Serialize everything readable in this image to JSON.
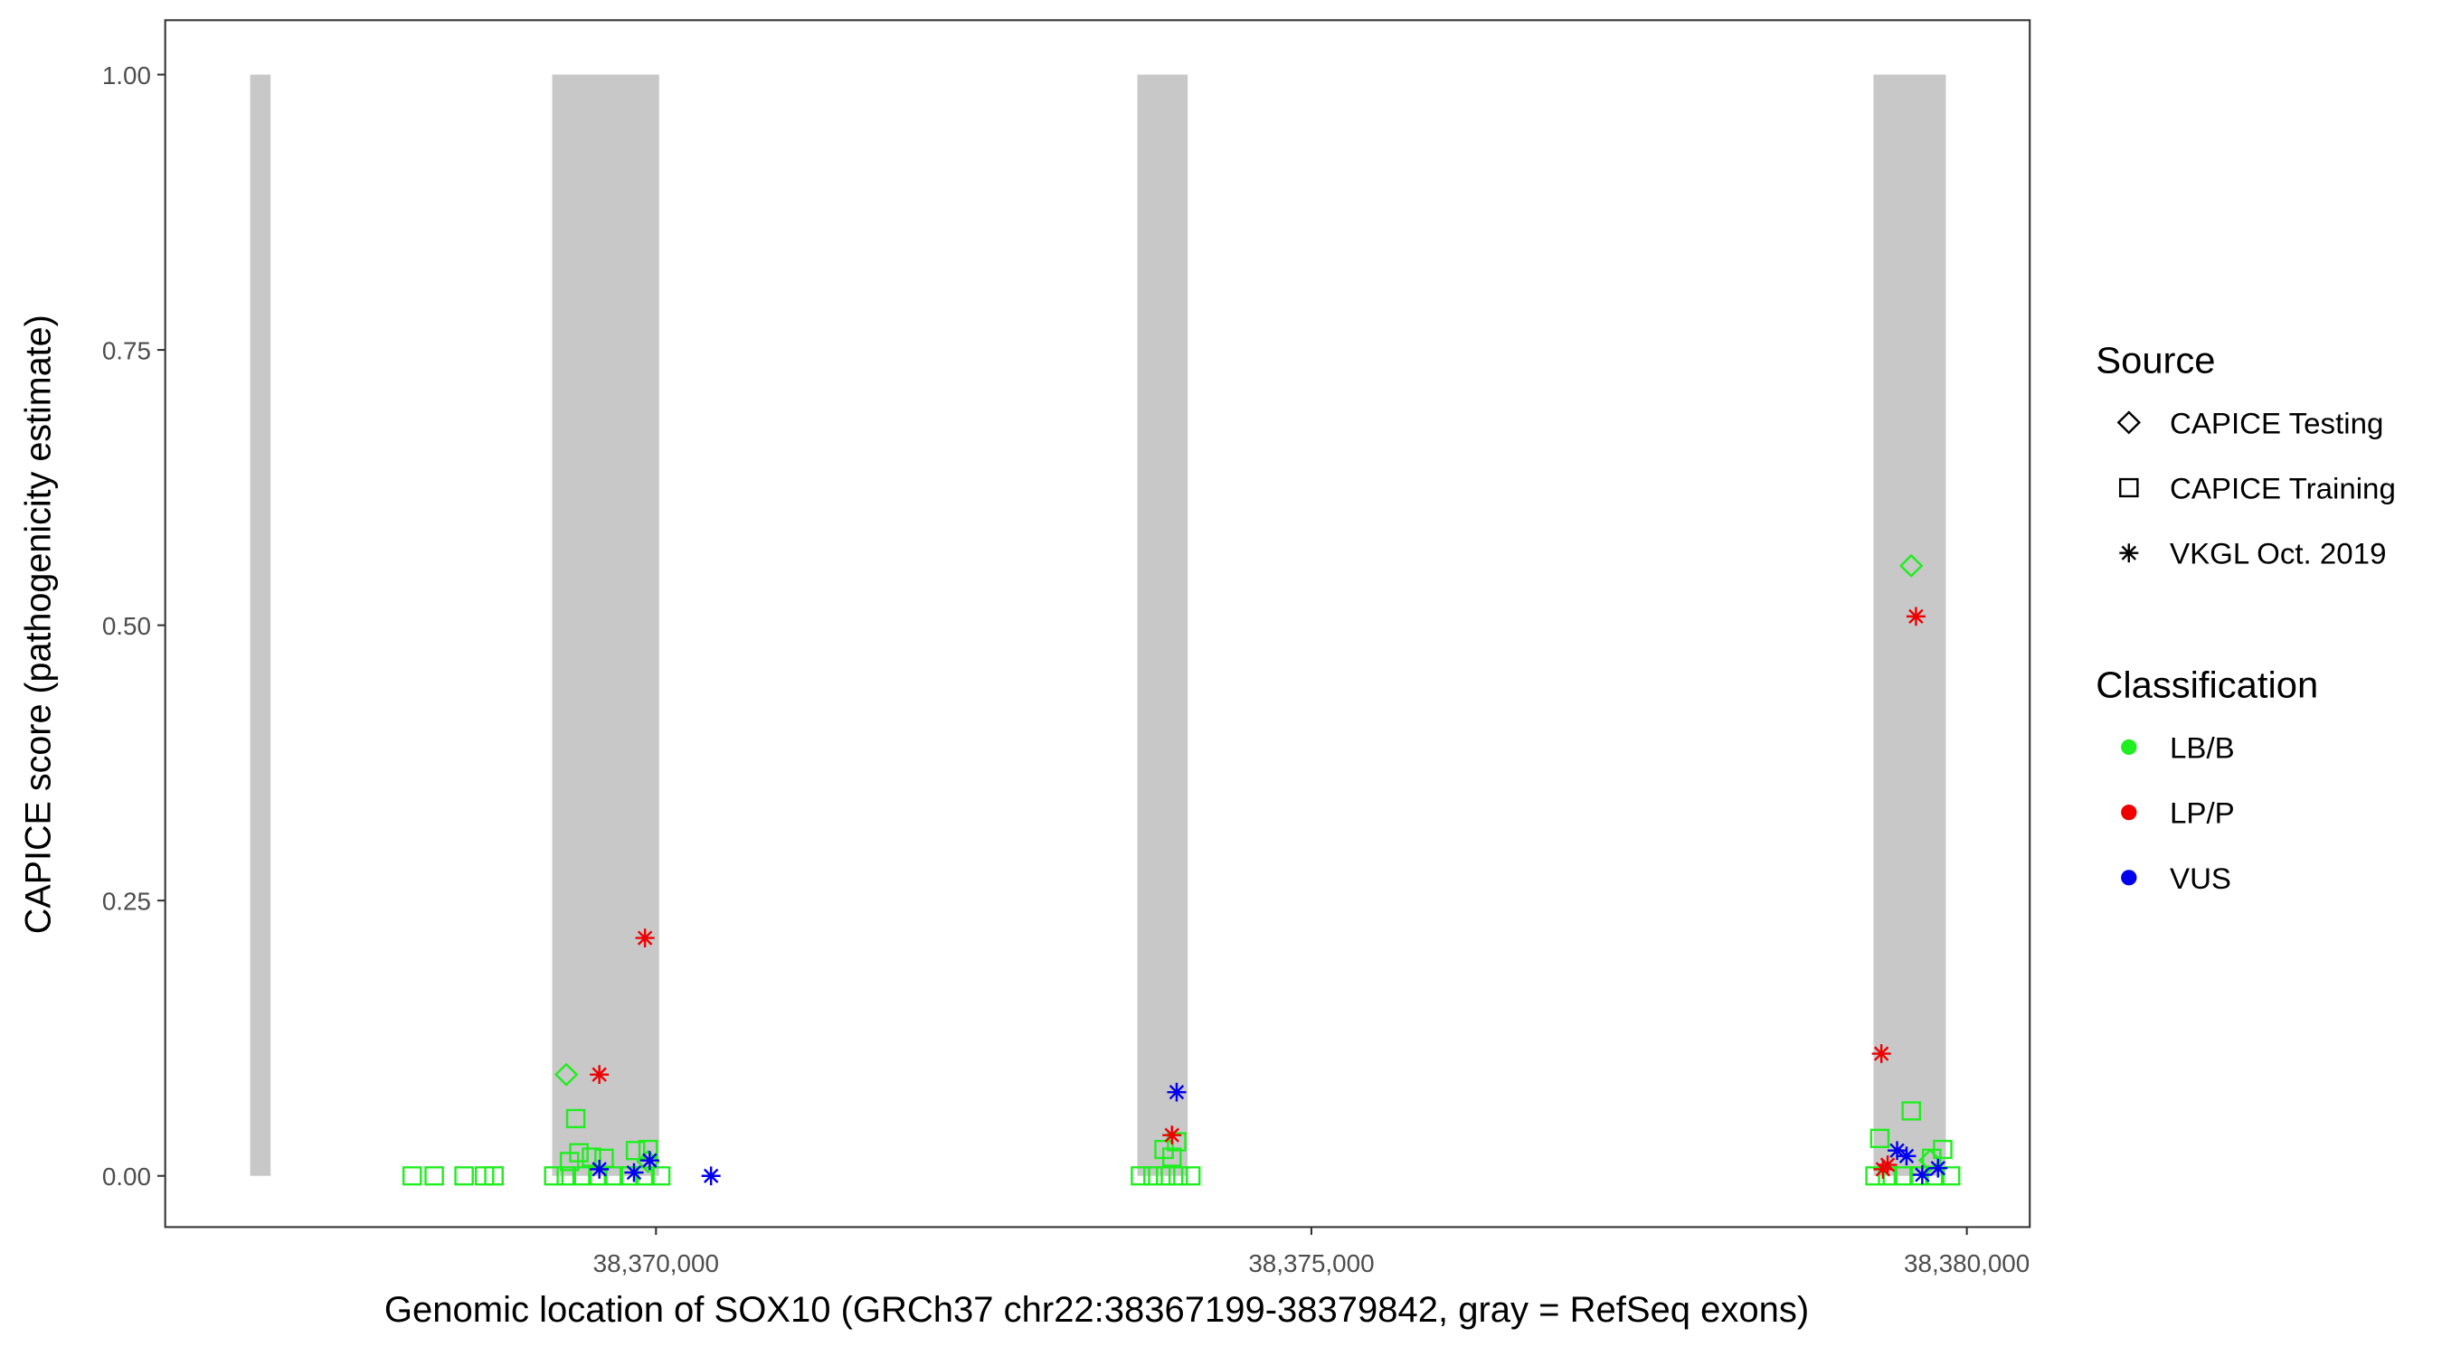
{
  "chart_data": {
    "type": "scatter",
    "x_label": "Genomic location of SOX10 (GRCh37 chr22:38367199-38379842, gray = RefSeq exons)",
    "y_label": "CAPICE score (pathogenicity estimate)",
    "xlim": [
      38366256,
      38380480
    ],
    "ylim": [
      -0.0465,
      1.0494
    ],
    "xticks": [
      {
        "value": 38370000,
        "label": "38,370,000"
      },
      {
        "value": 38375000,
        "label": "38,375,000"
      },
      {
        "value": 38380000,
        "label": "38,380,000"
      }
    ],
    "yticks": [
      {
        "value": 0,
        "label": "0.00"
      },
      {
        "value": 0.25,
        "label": "0.25"
      },
      {
        "value": 0.5,
        "label": "0.50"
      },
      {
        "value": 0.75,
        "label": "0.75"
      },
      {
        "value": 1,
        "label": "1.00"
      }
    ],
    "exon_color": "#c8c8c8",
    "exons": [
      {
        "start": 38366904,
        "end": 38367060,
        "bottom": 0,
        "top": 1
      },
      {
        "start": 38369208,
        "end": 38370024,
        "bottom": 0,
        "top": 1
      },
      {
        "start": 38373672,
        "end": 38374056,
        "bottom": 0,
        "top": 1
      },
      {
        "start": 38379288,
        "end": 38379840,
        "bottom": 0,
        "top": 1
      }
    ],
    "legend_source": {
      "title": "Source",
      "items": [
        {
          "name": "CAPICE Testing",
          "shape": "diamond"
        },
        {
          "name": "CAPICE Training",
          "shape": "square"
        },
        {
          "name": "VKGL Oct. 2019",
          "shape": "asterisk"
        }
      ]
    },
    "legend_classification": {
      "title": "Classification",
      "items": [
        {
          "name": "LB/B",
          "color": "#1fee1f"
        },
        {
          "name": "LP/P",
          "color": "#ee0000"
        },
        {
          "name": "VUS",
          "color": "#0000ee"
        }
      ]
    },
    "series": [
      {
        "shape": "square",
        "color": "#1fee1f",
        "x": [
          38368140,
          38368308,
          38368536,
          38368692,
          38368764,
          38369220,
          38369316,
          38369436,
          38369556,
          38369676,
          38369796,
          38369916,
          38370036,
          38369388,
          38369412,
          38369340,
          38369508,
          38369604,
          38369844,
          38369940,
          38373696,
          38373792,
          38373888,
          38373984,
          38374080,
          38373876,
          38373936,
          38373972,
          38379300,
          38379396,
          38379516,
          38379636,
          38379756,
          38379876,
          38379336,
          38379576,
          38379816,
          38379732
        ],
        "y": [
          0,
          0,
          0,
          0,
          0,
          0,
          0,
          0,
          0,
          0,
          0,
          0,
          0,
          0.052,
          0.021,
          0.013,
          0.017,
          0.016,
          0.023,
          0.024,
          0,
          0,
          0,
          0,
          0,
          0.024,
          0.017,
          0.031,
          0,
          0,
          0,
          0,
          0,
          0,
          0.034,
          0.059,
          0.024,
          0.016
        ]
      },
      {
        "shape": "diamond",
        "color": "#1fee1f",
        "x": [
          38369316,
          38379576,
          38369940,
          38379720
        ],
        "y": [
          0.092,
          0.554,
          0.013,
          0.014
        ]
      },
      {
        "shape": "asterisk",
        "color": "#ee0000",
        "x": [
          38369916,
          38369568,
          38373936,
          38379348,
          38379612,
          38379396,
          38379360
        ],
        "y": [
          0.216,
          0.092,
          0.037,
          0.111,
          0.508,
          0.01,
          0.006
        ]
      },
      {
        "shape": "asterisk",
        "color": "#0000ee",
        "x": [
          38370420,
          38373972,
          38369568,
          38369832,
          38369952,
          38379468,
          38379540,
          38379660,
          38379780
        ],
        "y": [
          0,
          0.076,
          0.006,
          0.003,
          0.014,
          0.023,
          0.018,
          0.001,
          0.007
        ]
      }
    ]
  }
}
